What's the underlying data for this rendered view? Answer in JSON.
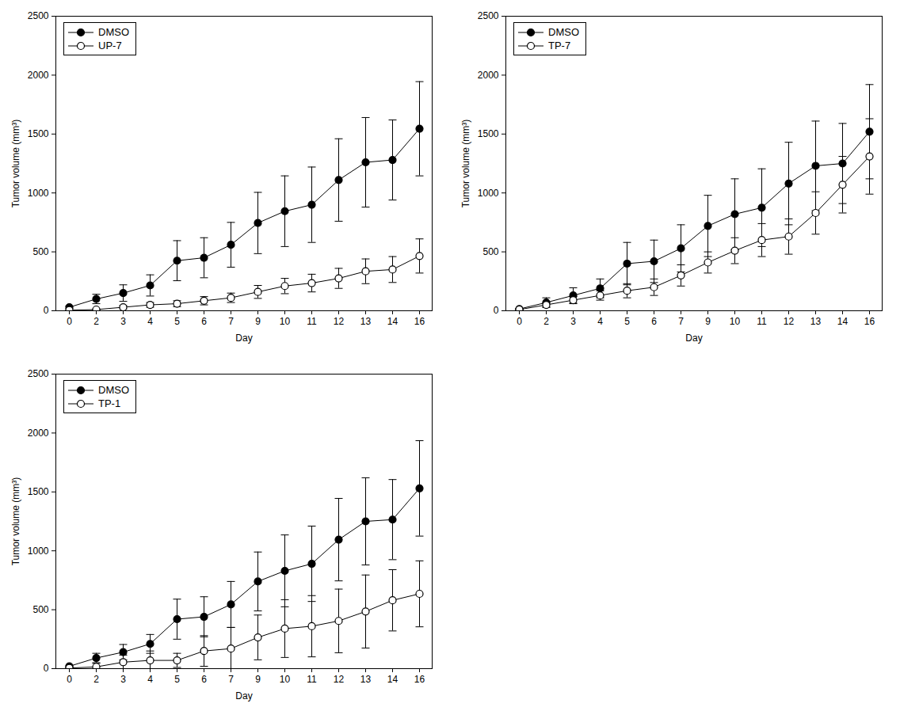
{
  "chart_data": [
    {
      "type": "line",
      "x_label": "Day",
      "y_label": "Tumor volume (mm³)",
      "categories": [
        "0",
        "2",
        "3",
        "4",
        "5",
        "6",
        "7",
        "9",
        "10",
        "11",
        "12",
        "13",
        "14",
        "16"
      ],
      "ylim": [
        0,
        2500
      ],
      "yticks": [
        0,
        500,
        1000,
        1500,
        2000,
        2500
      ],
      "legend": "top-left",
      "series": [
        {
          "name": "DMSO",
          "color": "#000000",
          "marker": "filled",
          "values": [
            30,
            100,
            150,
            215,
            425,
            450,
            560,
            745,
            845,
            900,
            1110,
            1260,
            1280,
            1545
          ],
          "error": [
            10,
            40,
            70,
            90,
            170,
            170,
            190,
            260,
            300,
            320,
            350,
            380,
            340,
            400
          ]
        },
        {
          "name": "UP-7",
          "color": "#000000",
          "marker": "open",
          "values": [
            5,
            10,
            30,
            50,
            60,
            85,
            110,
            160,
            210,
            235,
            275,
            335,
            350,
            465
          ],
          "error": [
            3,
            5,
            15,
            20,
            25,
            35,
            40,
            55,
            65,
            75,
            85,
            105,
            110,
            145
          ]
        }
      ]
    },
    {
      "type": "line",
      "x_label": "Day",
      "y_label": "Tumor volume (mm³)",
      "categories": [
        "0",
        "2",
        "3",
        "4",
        "5",
        "6",
        "7",
        "9",
        "10",
        "11",
        "12",
        "13",
        "14",
        "16"
      ],
      "ylim": [
        0,
        2500
      ],
      "yticks": [
        0,
        500,
        1000,
        1500,
        2000,
        2500
      ],
      "legend": "top-left",
      "series": [
        {
          "name": "DMSO",
          "color": "#000000",
          "marker": "filled",
          "values": [
            15,
            70,
            130,
            190,
            400,
            420,
            530,
            720,
            820,
            875,
            1080,
            1230,
            1250,
            1520
          ],
          "error": [
            5,
            40,
            65,
            80,
            180,
            180,
            200,
            260,
            300,
            330,
            350,
            380,
            340,
            400
          ]
        },
        {
          "name": "TP-7",
          "color": "#000000",
          "marker": "open",
          "values": [
            10,
            50,
            90,
            130,
            170,
            200,
            300,
            410,
            510,
            600,
            630,
            830,
            1070,
            1310
          ],
          "error": [
            5,
            20,
            30,
            40,
            60,
            70,
            90,
            90,
            110,
            140,
            150,
            180,
            240,
            320
          ]
        }
      ]
    },
    {
      "type": "line",
      "x_label": "Day",
      "y_label": "Tumor volume (mm³)",
      "categories": [
        "0",
        "2",
        "3",
        "4",
        "5",
        "6",
        "7",
        "9",
        "10",
        "11",
        "12",
        "13",
        "14",
        "16"
      ],
      "ylim": [
        0,
        2500
      ],
      "yticks": [
        0,
        500,
        1000,
        1500,
        2000,
        2500
      ],
      "legend": "top-left",
      "series": [
        {
          "name": "DMSO",
          "color": "#000000",
          "marker": "filled",
          "values": [
            20,
            90,
            140,
            210,
            420,
            440,
            545,
            740,
            830,
            890,
            1095,
            1250,
            1265,
            1530
          ],
          "error": [
            5,
            40,
            65,
            80,
            170,
            170,
            195,
            250,
            305,
            320,
            350,
            370,
            340,
            405
          ]
        },
        {
          "name": "TP-1",
          "color": "#000000",
          "marker": "open",
          "values": [
            5,
            15,
            55,
            70,
            70,
            150,
            170,
            265,
            340,
            360,
            405,
            485,
            580,
            635
          ],
          "error": [
            3,
            30,
            60,
            80,
            60,
            130,
            180,
            190,
            245,
            260,
            270,
            310,
            260,
            280
          ]
        }
      ]
    }
  ]
}
